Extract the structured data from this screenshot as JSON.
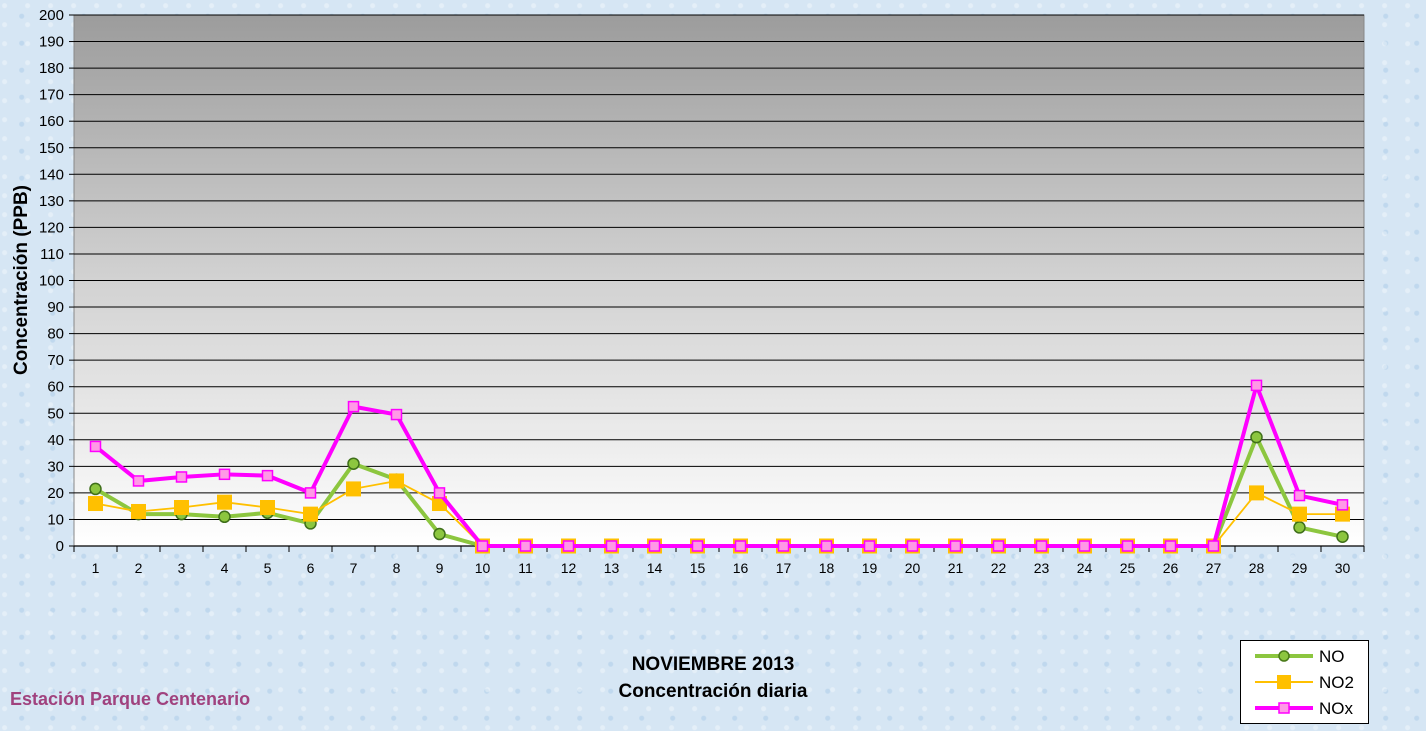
{
  "chart_data": {
    "type": "line",
    "title": "NOVIEMBRE 2013",
    "subtitle": "Concentración diaria",
    "ylabel": "Concentración (PPB)",
    "xlabel": "",
    "ylim": [
      0,
      200
    ],
    "y_ticks": [
      0,
      10,
      20,
      30,
      40,
      50,
      60,
      70,
      80,
      90,
      100,
      110,
      120,
      130,
      140,
      150,
      160,
      170,
      180,
      190,
      200
    ],
    "x": [
      1,
      2,
      3,
      4,
      5,
      6,
      7,
      8,
      9,
      10,
      11,
      12,
      13,
      14,
      15,
      16,
      17,
      18,
      19,
      20,
      21,
      22,
      23,
      24,
      25,
      26,
      27,
      28,
      29,
      30
    ],
    "grid": true,
    "legend_position": "bottom-right",
    "series": [
      {
        "name": "NO",
        "color": "#8cc63f",
        "marker": "circle",
        "values": [
          21.5,
          12,
          12,
          11,
          12.5,
          8.5,
          31,
          25,
          4.5,
          0,
          0,
          0,
          0,
          0,
          0,
          0,
          0,
          0,
          0,
          0,
          0,
          0,
          0,
          0,
          0,
          0,
          0,
          41,
          7,
          3.5
        ]
      },
      {
        "name": "NO2",
        "color": "#ffc000",
        "marker": "square",
        "values": [
          16,
          13,
          14.5,
          16.5,
          14.5,
          12,
          21.5,
          24.5,
          16,
          0,
          0,
          0,
          0,
          0,
          0,
          0,
          0,
          0,
          0,
          0,
          0,
          0,
          0,
          0,
          0,
          0,
          0,
          20,
          12,
          12
        ]
      },
      {
        "name": "NOx",
        "color": "#ff00ff",
        "marker": "square",
        "values": [
          37.5,
          24.5,
          26,
          27,
          26.5,
          20,
          52.5,
          49.5,
          20,
          0,
          0,
          0,
          0,
          0,
          0,
          0,
          0,
          0,
          0,
          0,
          0,
          0,
          0,
          0,
          0,
          0,
          0,
          60.5,
          19,
          15.5
        ]
      }
    ]
  },
  "station_label": "Estación Parque Centenario"
}
